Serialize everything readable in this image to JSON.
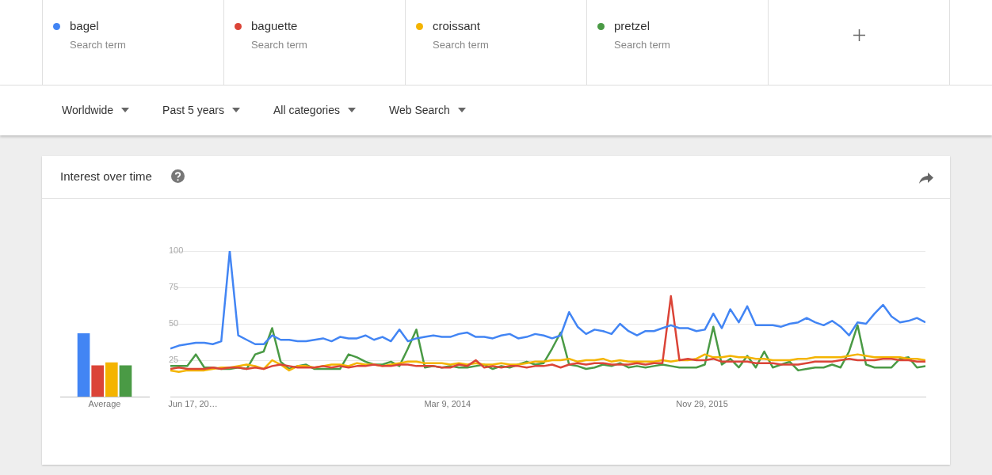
{
  "chart_data": [
    {
      "type": "bar",
      "title": "Interest over time",
      "categories": [
        "Average"
      ],
      "ylim": [
        0,
        100
      ],
      "tick_labels": "x",
      "series": [
        {
          "color": "#4285f4",
          "values": [
            44
          ]
        },
        {
          "color": "#db4437",
          "values": [
            22
          ]
        },
        {
          "color": "#f4b400",
          "values": [
            24
          ]
        },
        {
          "color": "#4a9a45",
          "values": [
            22
          ]
        }
      ]
    },
    {
      "type": "line",
      "legend": "top",
      "grid": "y",
      "marker": "none",
      "annotations": [
        "Search term",
        "Search term",
        "Search term",
        "Search term",
        "Worldwide",
        "Past 5 years",
        "All categories",
        "Web Search"
      ],
      "xlim": [
        "2012-04-22",
        "2017-06-04"
      ],
      "xticks": [
        {
          "value": "2012-06-17",
          "label": "Jun 17, 20…"
        },
        {
          "value": "2014-03-09",
          "label": "Mar 9, 2014"
        },
        {
          "value": "2015-11-29",
          "label": "Nov 29, 2015"
        }
      ],
      "ylim": [
        0,
        100
      ],
      "yticks": [
        25,
        50,
        75,
        100
      ],
      "x": [
        "2012-04-22",
        "2012-05-13",
        "2012-06-03",
        "2012-06-24",
        "2012-07-15",
        "2012-08-05",
        "2012-08-26",
        "2012-09-16",
        "2012-10-07",
        "2012-10-28",
        "2012-11-18",
        "2012-12-09",
        "2012-12-30",
        "2013-01-20",
        "2013-02-10",
        "2013-03-03",
        "2013-03-24",
        "2013-04-14",
        "2013-05-05",
        "2013-05-26",
        "2013-06-16",
        "2013-07-07",
        "2013-07-28",
        "2013-08-18",
        "2013-09-08",
        "2013-09-29",
        "2013-10-20",
        "2013-11-10",
        "2013-12-01",
        "2013-12-22",
        "2014-01-12",
        "2014-02-02",
        "2014-02-23",
        "2014-03-16",
        "2014-04-06",
        "2014-04-27",
        "2014-05-18",
        "2014-06-08",
        "2014-06-29",
        "2014-07-20",
        "2014-08-10",
        "2014-08-31",
        "2014-09-21",
        "2014-10-12",
        "2014-11-02",
        "2014-11-23",
        "2014-12-14",
        "2015-01-04",
        "2015-01-25",
        "2015-02-15",
        "2015-03-08",
        "2015-03-29",
        "2015-04-19",
        "2015-05-10",
        "2015-05-31",
        "2015-06-21",
        "2015-07-12",
        "2015-08-02",
        "2015-08-23",
        "2015-09-13",
        "2015-10-04",
        "2015-10-25",
        "2015-11-15",
        "2015-12-06",
        "2015-12-27",
        "2016-01-17",
        "2016-02-07",
        "2016-02-28",
        "2016-03-20",
        "2016-04-10",
        "2016-05-01",
        "2016-05-22",
        "2016-06-12",
        "2016-07-03",
        "2016-07-24",
        "2016-08-14",
        "2016-09-04",
        "2016-09-25",
        "2016-10-16",
        "2016-11-06",
        "2016-11-27",
        "2016-12-18",
        "2017-01-08",
        "2017-01-29",
        "2017-02-19",
        "2017-03-12",
        "2017-04-02",
        "2017-04-23",
        "2017-05-14",
        "2017-06-04"
      ],
      "series": [
        {
          "name": "bagel",
          "color": "#4285f4",
          "values": [
            33,
            35,
            36,
            37,
            37,
            36,
            38,
            100,
            42,
            39,
            36,
            36,
            42,
            39,
            39,
            38,
            38,
            39,
            40,
            38,
            41,
            40,
            40,
            42,
            39,
            41,
            38,
            46,
            38,
            40,
            41,
            42,
            41,
            41,
            43,
            44,
            41,
            41,
            40,
            42,
            43,
            40,
            41,
            43,
            42,
            40,
            42,
            58,
            48,
            43,
            46,
            45,
            43,
            50,
            45,
            42,
            45,
            45,
            47,
            49,
            47,
            47,
            45,
            46,
            57,
            47,
            60,
            51,
            62,
            49,
            49,
            49,
            48,
            50,
            51,
            54,
            51,
            49,
            52,
            48,
            42,
            51,
            50,
            57,
            63,
            55,
            51,
            52,
            54,
            51
          ]
        },
        {
          "name": "baguette",
          "color": "#db4437",
          "values": [
            19,
            20,
            19,
            19,
            19,
            20,
            19,
            20,
            20,
            19,
            20,
            19,
            21,
            22,
            21,
            20,
            20,
            20,
            21,
            20,
            21,
            20,
            21,
            21,
            22,
            21,
            21,
            22,
            22,
            21,
            21,
            21,
            20,
            20,
            22,
            21,
            25,
            20,
            21,
            20,
            21,
            21,
            20,
            21,
            21,
            22,
            20,
            22,
            23,
            22,
            23,
            23,
            22,
            22,
            22,
            23,
            22,
            23,
            23,
            69,
            25,
            26,
            25,
            25,
            26,
            24,
            24,
            24,
            24,
            23,
            23,
            23,
            22,
            22,
            22,
            23,
            24,
            24,
            24,
            25,
            26,
            25,
            25,
            25,
            26,
            26,
            25,
            25,
            24,
            24
          ]
        },
        {
          "name": "croissant",
          "color": "#f4b400",
          "values": [
            18,
            17,
            18,
            18,
            18,
            19,
            20,
            20,
            21,
            22,
            21,
            19,
            25,
            22,
            18,
            21,
            21,
            20,
            21,
            22,
            22,
            21,
            23,
            22,
            22,
            21,
            22,
            23,
            24,
            24,
            23,
            23,
            23,
            22,
            23,
            22,
            23,
            22,
            22,
            23,
            22,
            22,
            23,
            24,
            24,
            25,
            25,
            26,
            24,
            25,
            25,
            26,
            24,
            25,
            24,
            24,
            24,
            24,
            25,
            24,
            25,
            25,
            26,
            29,
            27,
            27,
            28,
            27,
            27,
            26,
            26,
            25,
            25,
            25,
            26,
            26,
            27,
            27,
            27,
            27,
            28,
            29,
            28,
            27,
            27,
            27,
            27,
            26,
            26,
            25
          ]
        },
        {
          "name": "pretzel",
          "color": "#4a9a45",
          "values": [
            21,
            21,
            21,
            29,
            20,
            20,
            19,
            19,
            20,
            19,
            29,
            31,
            47,
            24,
            19,
            21,
            22,
            19,
            19,
            19,
            19,
            29,
            27,
            24,
            22,
            22,
            24,
            21,
            33,
            46,
            20,
            21,
            20,
            21,
            20,
            20,
            21,
            22,
            19,
            21,
            20,
            22,
            24,
            22,
            23,
            33,
            44,
            22,
            21,
            19,
            20,
            22,
            21,
            23,
            20,
            21,
            20,
            21,
            22,
            21,
            20,
            20,
            20,
            22,
            48,
            22,
            26,
            20,
            28,
            20,
            31,
            20,
            22,
            24,
            18,
            19,
            20,
            20,
            22,
            20,
            31,
            49,
            22,
            20,
            20,
            20,
            26,
            27,
            20,
            21
          ]
        }
      ]
    }
  ]
}
